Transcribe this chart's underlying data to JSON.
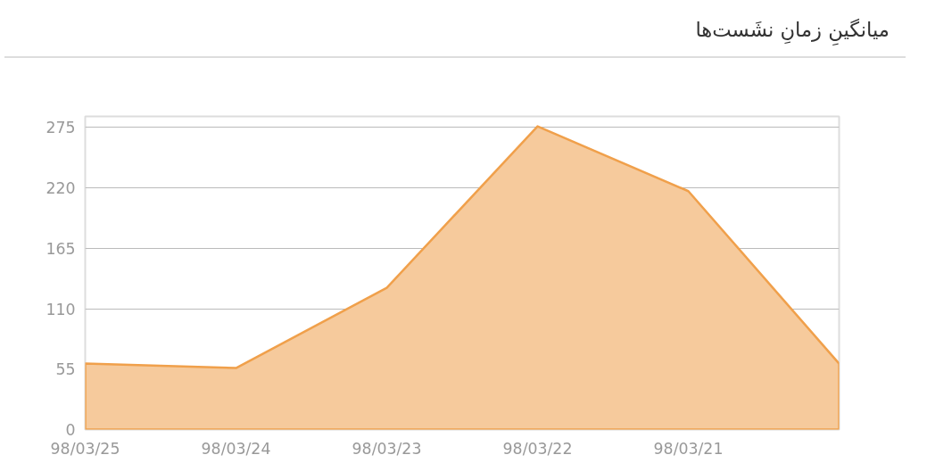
{
  "chart_data": {
    "type": "area",
    "title": "میانگینِ زمانِ نشَست‌ها",
    "categories": [
      "98/03/25",
      "98/03/24",
      "98/03/23",
      "98/03/22",
      "98/03/21",
      null
    ],
    "series": [
      {
        "color": "#f0a04b",
        "values": [
          60,
          56,
          129,
          276,
          217,
          60
        ]
      }
    ],
    "ylim": [
      0,
      285
    ],
    "yticks": [
      0,
      55,
      110,
      165,
      220,
      275
    ],
    "grid": "y"
  }
}
